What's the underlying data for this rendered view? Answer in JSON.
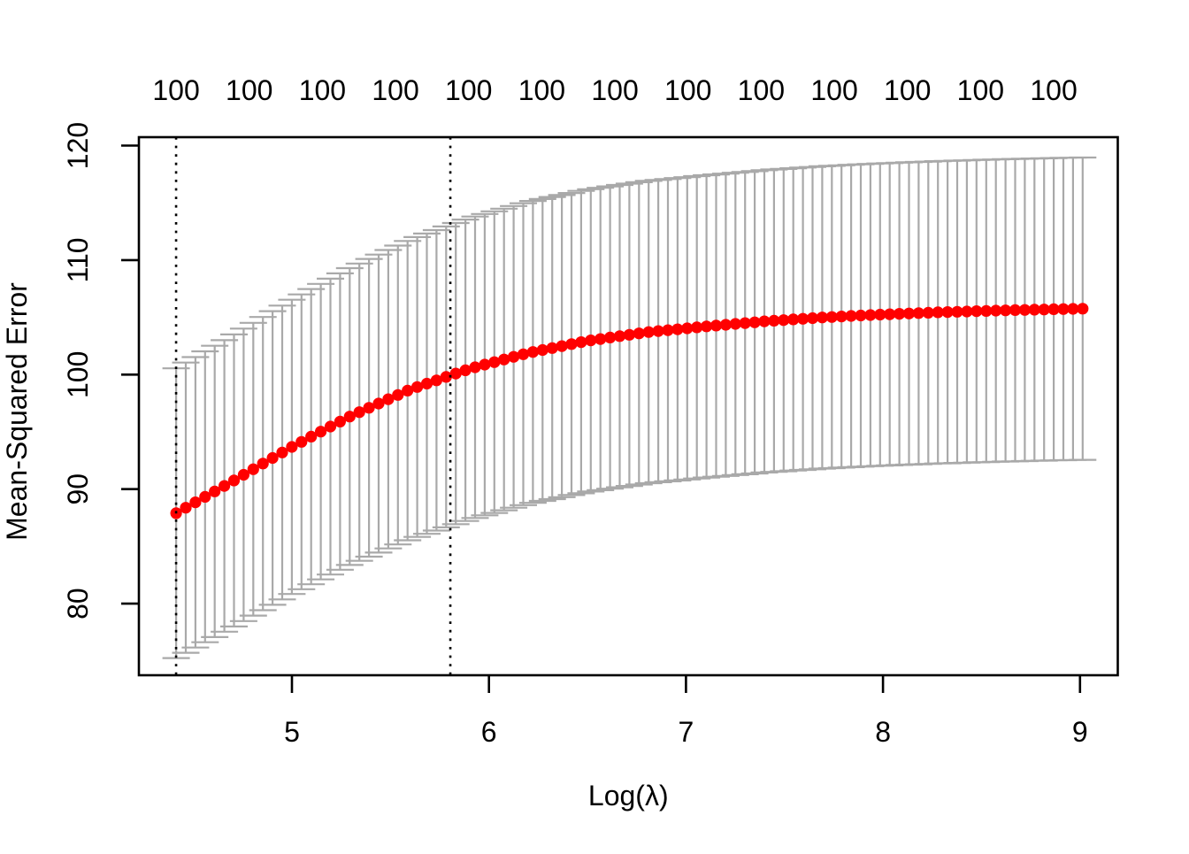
{
  "chart_data": {
    "type": "scatter",
    "subtype": "cv-curve-with-error-bars",
    "xlabel": "Log(λ)",
    "ylabel": "Mean-Squared Error",
    "x_ticks": [
      5,
      6,
      7,
      8,
      9
    ],
    "y_ticks": [
      80,
      90,
      100,
      110,
      120
    ],
    "xlim": [
      4.223,
      9.192
    ],
    "ylim": [
      73.75,
      120.73
    ],
    "grid": false,
    "legend": null,
    "top_axis_labels": {
      "label_text": "100",
      "positions": [
        4.412,
        4.7832,
        5.1544,
        5.5256,
        5.8968,
        6.268,
        6.6392,
        7.0104,
        7.3816,
        7.7528,
        8.124,
        8.4952,
        8.8664
      ],
      "labels": [
        "100",
        "100",
        "100",
        "100",
        "100",
        "100",
        "100",
        "100",
        "100",
        "100",
        "100",
        "100",
        "100"
      ]
    },
    "vlines": {
      "lambda_min": 4.412,
      "lambda_1se": 5.804,
      "style": "dotted"
    },
    "series": {
      "name": "mean-squared-error",
      "x_start": 4.412,
      "x_step": 0.04895,
      "n": 95,
      "y": [
        87.9,
        88.38,
        88.85,
        89.33,
        89.8,
        90.28,
        90.76,
        91.25,
        91.74,
        92.23,
        92.72,
        93.2,
        93.69,
        94.13,
        94.58,
        95.02,
        95.46,
        95.9,
        96.34,
        96.72,
        97.1,
        97.47,
        97.85,
        98.22,
        98.6,
        98.92,
        99.21,
        99.5,
        99.8,
        100.09,
        100.38,
        100.64,
        100.87,
        101.09,
        101.32,
        101.55,
        101.78,
        101.98,
        102.15,
        102.32,
        102.49,
        102.67,
        102.84,
        102.99,
        103.11,
        103.24,
        103.36,
        103.48,
        103.6,
        103.72,
        103.8,
        103.88,
        103.96,
        104.04,
        104.13,
        104.21,
        104.28,
        104.35,
        104.43,
        104.5,
        104.57,
        104.65,
        104.71,
        104.76,
        104.82,
        104.88,
        104.93,
        104.99,
        105.03,
        105.08,
        105.12,
        105.16,
        105.2,
        105.24,
        105.27,
        105.31,
        105.34,
        105.37,
        105.4,
        105.44,
        105.46,
        105.49,
        105.51,
        105.54,
        105.56,
        105.59,
        105.61,
        105.63,
        105.65,
        105.67,
        105.69,
        105.71,
        105.73,
        105.74,
        105.76
      ],
      "se": [
        12.65,
        12.67,
        12.68,
        12.7,
        12.72,
        12.73,
        12.75,
        12.77,
        12.78,
        12.8,
        12.82,
        12.83,
        12.85,
        12.87,
        12.89,
        12.9,
        12.92,
        12.94,
        12.96,
        12.98,
        13.0,
        13.01,
        13.03,
        13.05,
        13.07,
        13.09,
        13.11,
        13.12,
        13.14,
        13.15,
        13.16,
        13.16,
        13.16,
        13.17,
        13.17,
        13.17,
        13.18,
        13.18,
        13.18,
        13.19,
        13.19,
        13.19,
        13.2,
        13.2,
        13.2,
        13.2,
        13.2,
        13.2,
        13.2,
        13.2,
        13.2,
        13.2,
        13.2,
        13.2,
        13.2,
        13.2,
        13.2,
        13.2,
        13.2,
        13.2,
        13.2,
        13.2,
        13.2,
        13.2,
        13.2,
        13.2,
        13.2,
        13.2,
        13.2,
        13.2,
        13.2,
        13.2,
        13.2,
        13.2,
        13.2,
        13.2,
        13.2,
        13.2,
        13.2,
        13.2,
        13.2,
        13.2,
        13.2,
        13.2,
        13.2,
        13.2,
        13.2,
        13.2,
        13.2,
        13.2,
        13.2,
        13.2,
        13.2,
        13.2,
        13.2
      ]
    },
    "colors": {
      "point": "#FF0000",
      "error_bar": "#A9A9A9",
      "vline": "#000000",
      "axis": "#000000"
    }
  }
}
